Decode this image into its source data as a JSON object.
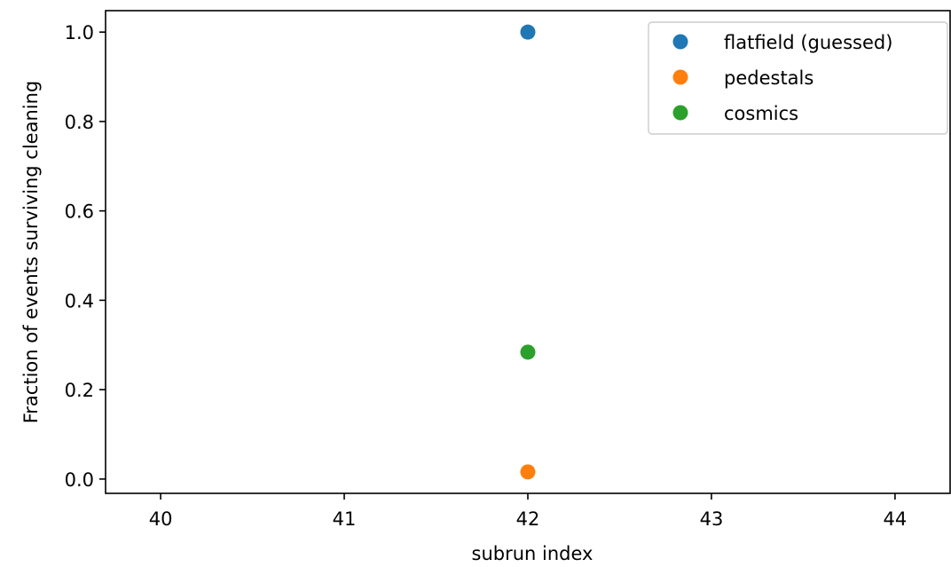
{
  "chart_data": {
    "type": "scatter",
    "title": "",
    "xlabel": "subrun index",
    "ylabel": "Fraction of events surviving cleaning",
    "xlim": [
      39.7,
      44.3
    ],
    "ylim": [
      -0.032,
      1.048
    ],
    "xticks": [
      40,
      41,
      42,
      43,
      44
    ],
    "xtick_labels": [
      "40",
      "41",
      "42",
      "43",
      "44"
    ],
    "yticks": [
      0.0,
      0.2,
      0.4,
      0.6,
      0.8,
      1.0
    ],
    "ytick_labels": [
      "0.0",
      "0.2",
      "0.4",
      "0.6",
      "0.8",
      "1.0"
    ],
    "grid": false,
    "legend_position": "top-right",
    "series": [
      {
        "name": "flatfield (guessed)",
        "color": "#1f77b4",
        "points": [
          {
            "x": 42,
            "y": 1.0
          }
        ]
      },
      {
        "name": "pedestals",
        "color": "#ff7f0e",
        "points": [
          {
            "x": 42,
            "y": 0.016
          }
        ]
      },
      {
        "name": "cosmics",
        "color": "#2ca02c",
        "points": [
          {
            "x": 42,
            "y": 0.284
          }
        ]
      }
    ]
  }
}
